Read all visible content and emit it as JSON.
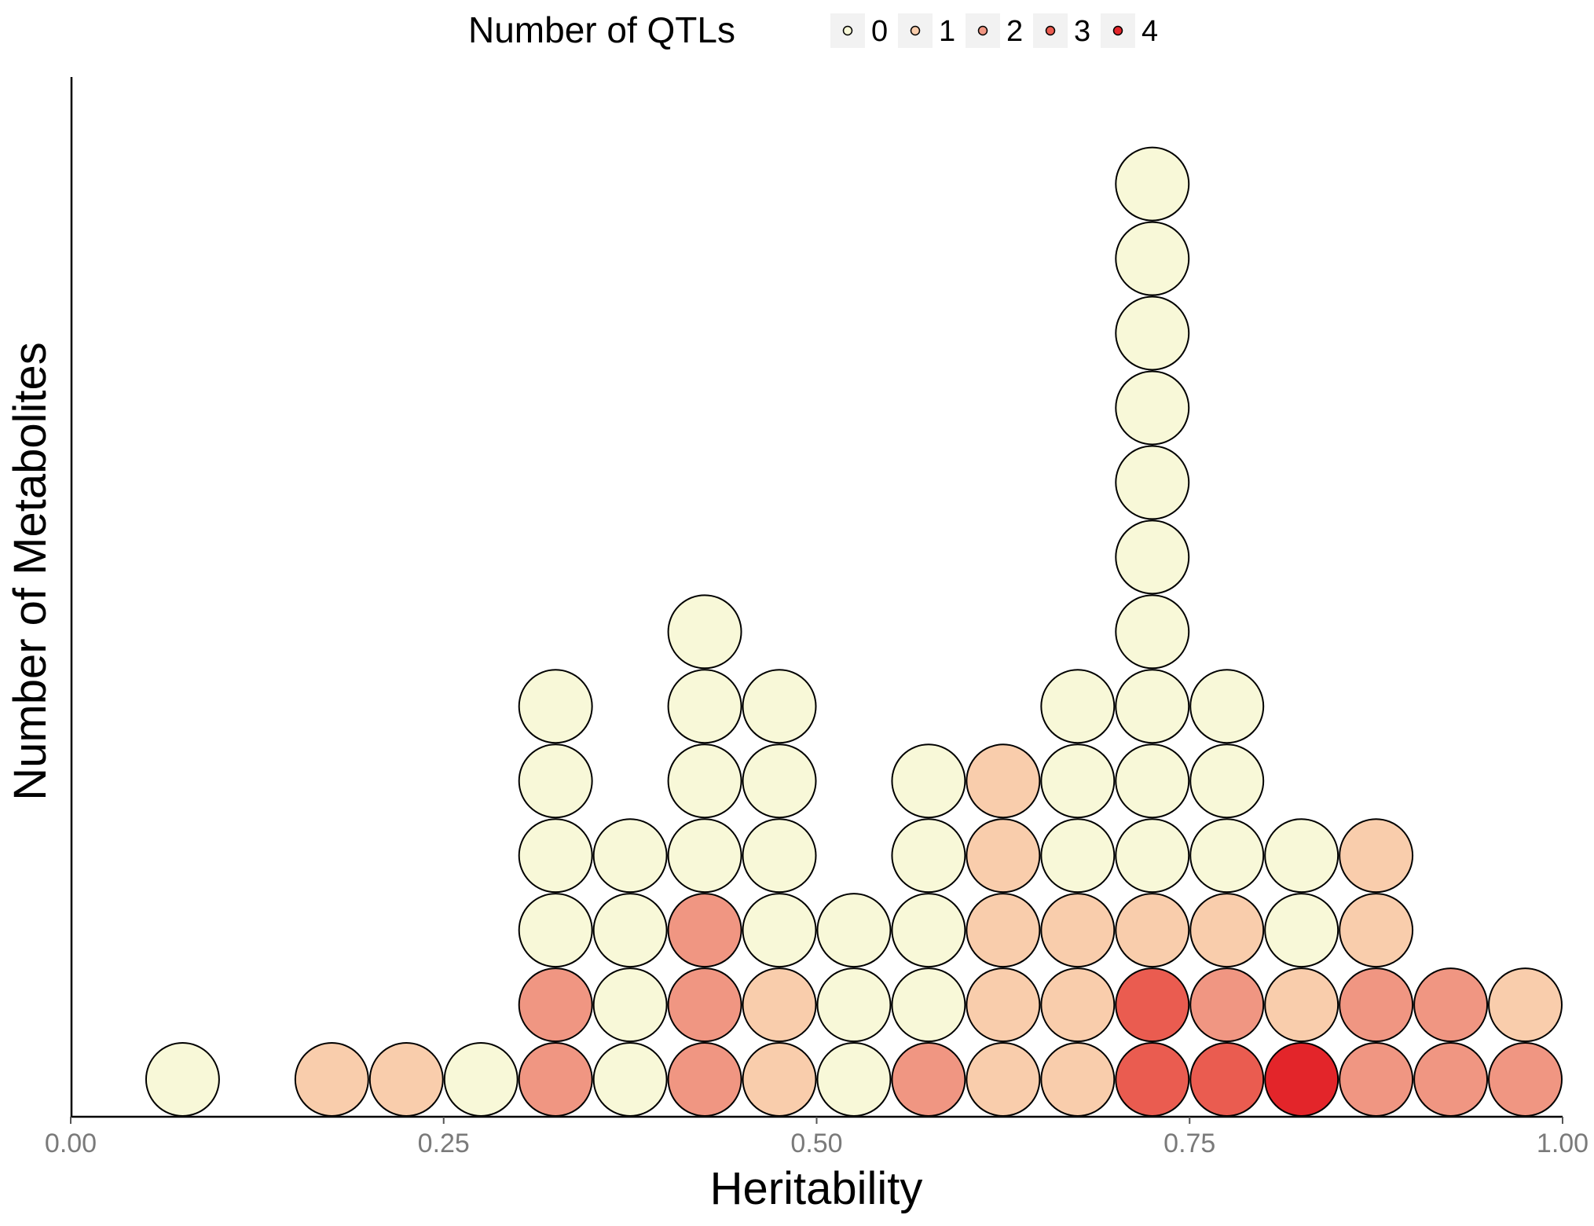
{
  "chart_data": {
    "type": "scatter",
    "subtype": "dotplot",
    "xlabel": "Heritability",
    "ylabel": "Number of Metabolites",
    "xlim": [
      0,
      1
    ],
    "x_ticks": [
      "0.00",
      "0.25",
      "0.50",
      "0.75",
      "1.00"
    ],
    "x_tick_values": [
      0,
      0.25,
      0.5,
      0.75,
      1.0
    ],
    "y_ticks_shown": false,
    "grid": false,
    "legend": {
      "title": "Number of QTLs",
      "position": "top",
      "levels": [
        "0",
        "1",
        "2",
        "3",
        "4"
      ],
      "colors": [
        "#f8f8d8",
        "#f9cdac",
        "#f09682",
        "#ea5c50",
        "#e3252a"
      ]
    },
    "bin_width": 0.05,
    "stacks": [
      {
        "x": 0.075,
        "qtls": [
          0
        ]
      },
      {
        "x": 0.175,
        "qtls": [
          1
        ]
      },
      {
        "x": 0.225,
        "qtls": [
          1
        ]
      },
      {
        "x": 0.275,
        "qtls": [
          0
        ]
      },
      {
        "x": 0.325,
        "qtls": [
          2,
          2,
          0,
          0,
          0,
          0
        ]
      },
      {
        "x": 0.375,
        "qtls": [
          0,
          0,
          0,
          0
        ]
      },
      {
        "x": 0.425,
        "qtls": [
          2,
          2,
          2,
          0,
          0,
          0,
          0
        ]
      },
      {
        "x": 0.475,
        "qtls": [
          1,
          1,
          0,
          0,
          0,
          0
        ]
      },
      {
        "x": 0.525,
        "qtls": [
          0,
          0,
          0
        ]
      },
      {
        "x": 0.575,
        "qtls": [
          2,
          0,
          0,
          0,
          0
        ]
      },
      {
        "x": 0.625,
        "qtls": [
          1,
          1,
          1,
          1,
          1
        ]
      },
      {
        "x": 0.675,
        "qtls": [
          1,
          1,
          1,
          0,
          0,
          0
        ]
      },
      {
        "x": 0.725,
        "qtls": [
          3,
          3,
          1,
          0,
          0,
          0,
          0,
          0,
          0,
          0,
          0,
          0,
          0
        ]
      },
      {
        "x": 0.775,
        "qtls": [
          3,
          2,
          1,
          0,
          0,
          0
        ]
      },
      {
        "x": 0.825,
        "qtls": [
          4,
          1,
          0,
          0
        ]
      },
      {
        "x": 0.875,
        "qtls": [
          2,
          2,
          1,
          1
        ]
      },
      {
        "x": 0.925,
        "qtls": [
          2,
          2
        ]
      },
      {
        "x": 0.975,
        "qtls": [
          2,
          1
        ]
      }
    ]
  }
}
